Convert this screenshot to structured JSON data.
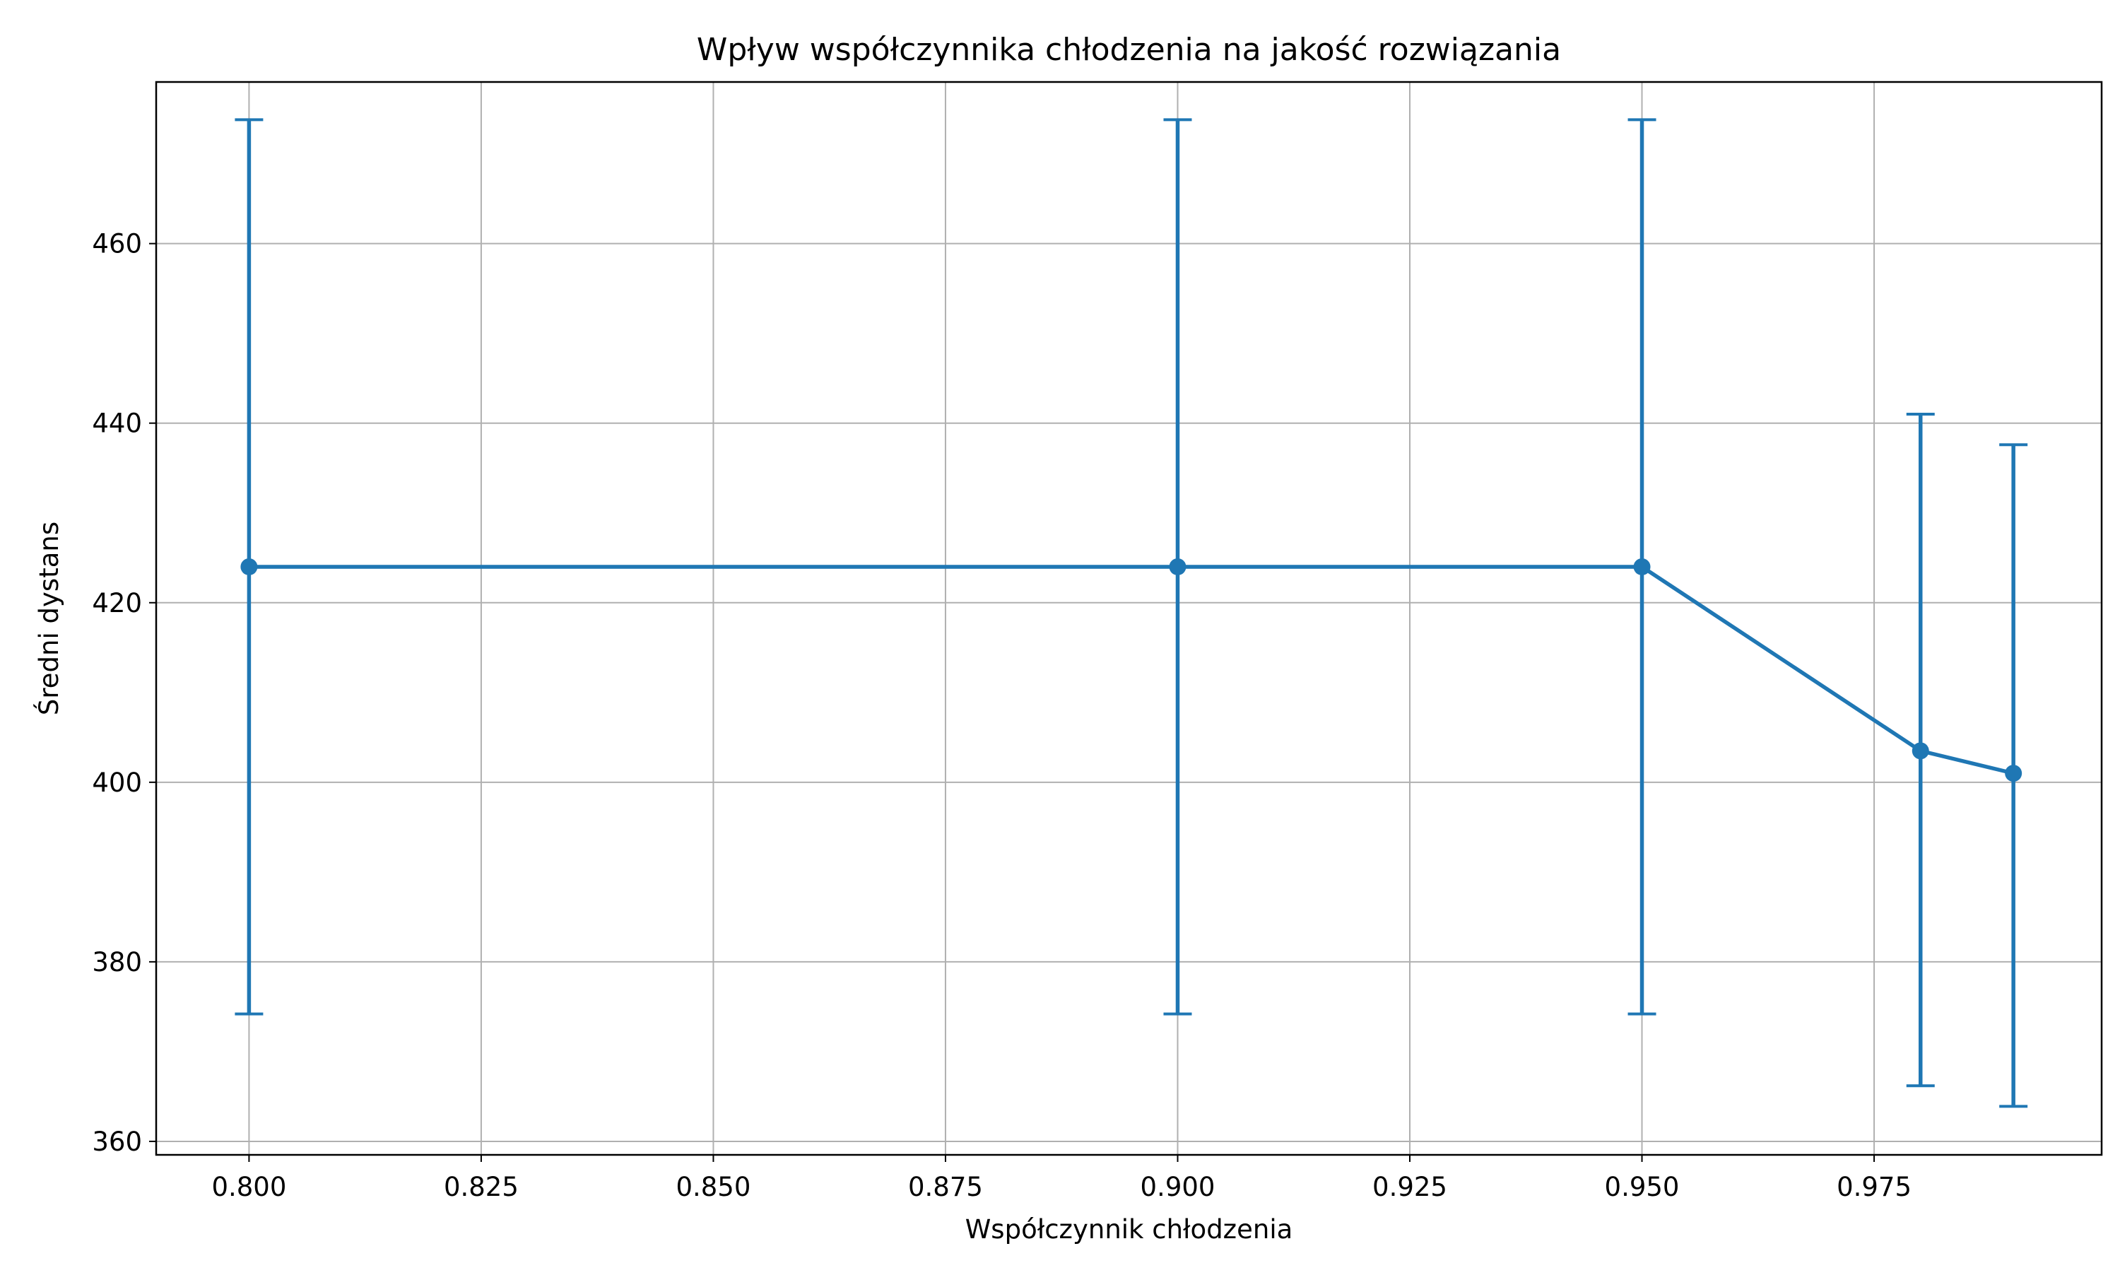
{
  "chart_data": {
    "type": "line",
    "title": "Wpływ współczynnika chłodzenia na jakość rozwiązania",
    "xlabel": "Współczynnik chłodzenia",
    "ylabel": "Średni dystans",
    "xlim": [
      0.79,
      0.9995
    ],
    "ylim": [
      358.5,
      478
    ],
    "x_ticks": [
      "0.800",
      "0.825",
      "0.850",
      "0.875",
      "0.900",
      "0.925",
      "0.950",
      "0.975"
    ],
    "y_ticks": [
      "360",
      "380",
      "400",
      "420",
      "440",
      "460"
    ],
    "grid": true,
    "series": [
      {
        "color": "#1f77b4",
        "marker": "circle",
        "error_bars": true,
        "x": [
          0.8,
          0.9,
          0.95,
          0.98,
          0.99
        ],
        "y": [
          424,
          424,
          424,
          403.5,
          401
        ],
        "yerr_low": [
          374.2,
          374.2,
          374.2,
          366.2,
          363.9
        ],
        "yerr_high": [
          473.8,
          473.8,
          473.8,
          441,
          437.6
        ]
      }
    ]
  }
}
